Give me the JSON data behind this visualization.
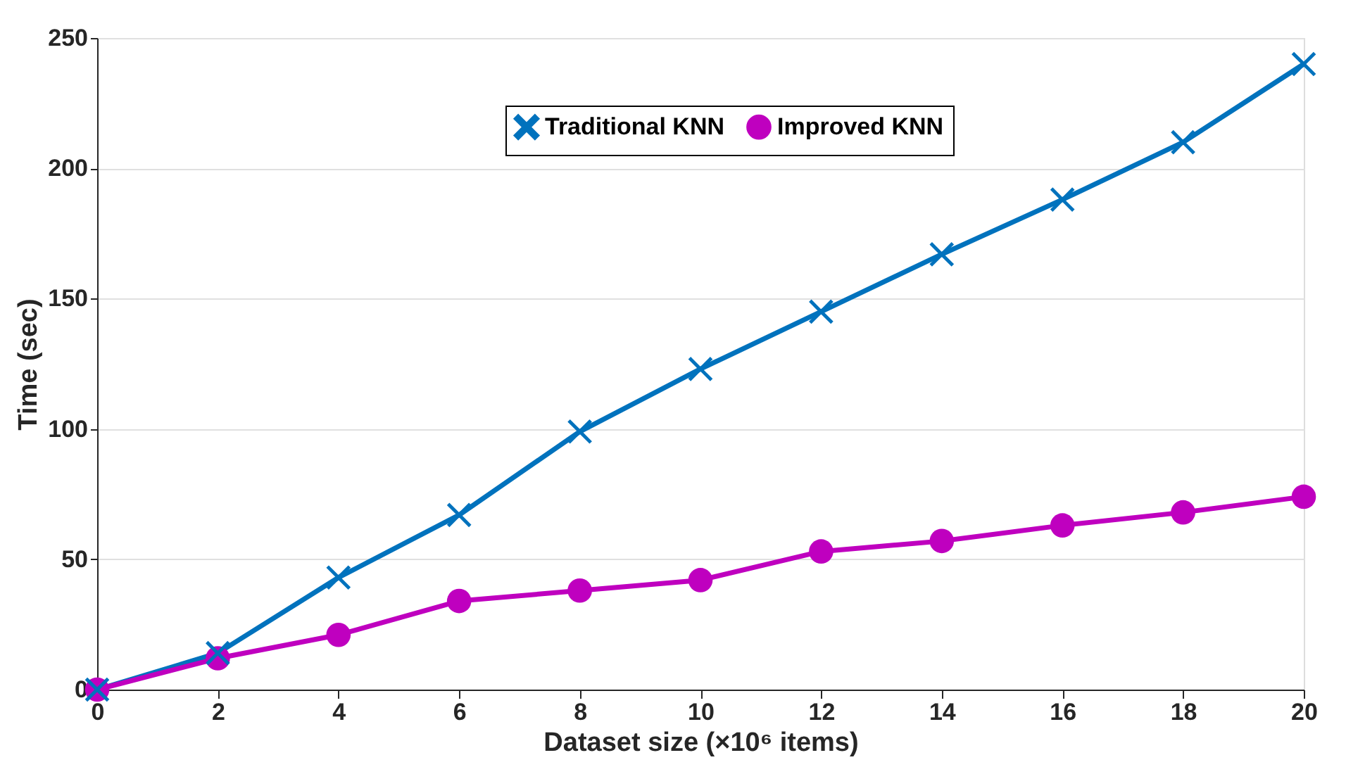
{
  "chart_data": {
    "type": "line",
    "xlabel": "Dataset size (×10⁶ items)",
    "ylabel": "Time (sec)",
    "x": [
      0,
      2,
      4,
      6,
      8,
      10,
      12,
      14,
      16,
      18,
      20
    ],
    "series": [
      {
        "name": "Traditional KNN",
        "color": "#0072bd",
        "marker": "cross",
        "values": [
          0,
          14,
          43,
          67,
          99,
          123,
          145,
          167,
          188,
          210,
          240
        ]
      },
      {
        "name": "Improved KNN",
        "color": "#bf00bf",
        "marker": "circle",
        "values": [
          0,
          12,
          21,
          34,
          38,
          42,
          53,
          57,
          63,
          68,
          74
        ]
      }
    ],
    "xlim": [
      0,
      20
    ],
    "xticks": [
      0,
      2,
      4,
      6,
      8,
      10,
      12,
      14,
      16,
      18,
      20
    ],
    "ylim": [
      0,
      250
    ],
    "yticks": [
      0,
      50,
      100,
      150,
      200,
      250
    ],
    "grid": "y",
    "legend": "top",
    "line_style": "solid"
  }
}
